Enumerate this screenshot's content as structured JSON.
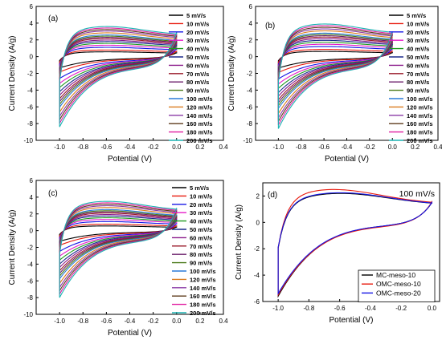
{
  "chart_data": [
    {
      "panel": "(a)",
      "type": "line",
      "xlabel": "Potential (V)",
      "ylabel": "Current Density (A/g)",
      "xlim": [
        -1.2,
        0.4
      ],
      "ylim": [
        -10,
        6
      ],
      "xticks": [
        "-1.0",
        "-0.8",
        "-0.6",
        "-0.4",
        "-0.2",
        "0.0",
        "0.2",
        "0.4"
      ],
      "yticks": [
        "-10",
        "-8",
        "-6",
        "-4",
        "-2",
        "0",
        "2",
        "4",
        "6"
      ],
      "grid": false,
      "legend_position": "right",
      "series": [
        {
          "name": "5 mV/s",
          "color": "#000000",
          "amp": 0.16
        },
        {
          "name": "10 mV/s",
          "color": "#e8190c",
          "amp": 0.22
        },
        {
          "name": "20 mV/s",
          "color": "#1515e6",
          "amp": 0.31
        },
        {
          "name": "30 mV/s",
          "color": "#e619c8",
          "amp": 0.38
        },
        {
          "name": "40 mV/s",
          "color": "#209a20",
          "amp": 0.44
        },
        {
          "name": "50 mV/s",
          "color": "#1a2a8c",
          "amp": 0.5
        },
        {
          "name": "60 mV/s",
          "color": "#8b1a8b",
          "amp": 0.55
        },
        {
          "name": "70 mV/s",
          "color": "#9a1a28",
          "amp": 0.6
        },
        {
          "name": "80 mV/s",
          "color": "#6b1f6b",
          "amp": 0.64
        },
        {
          "name": "90 mV/s",
          "color": "#4b7a1a",
          "amp": 0.68
        },
        {
          "name": "100 mV/s",
          "color": "#2a7ad9",
          "amp": 0.72
        },
        {
          "name": "120 mV/s",
          "color": "#d97a1a",
          "amp": 0.79
        },
        {
          "name": "140 mV/s",
          "color": "#8a3aa6",
          "amp": 0.85
        },
        {
          "name": "160 mV/s",
          "color": "#5c3a1a",
          "amp": 0.9
        },
        {
          "name": "180 mV/s",
          "color": "#e01ea0",
          "amp": 0.95
        },
        {
          "name": "200 mV/s",
          "color": "#1ab2b2",
          "amp": 1.0
        }
      ],
      "shape": {
        "x_start": -1.0,
        "x_end": 0.0,
        "peak_anodic": 3.6,
        "peak_x": -0.6,
        "end_anodic": 3.1,
        "end_cathodic": 2.9,
        "min_cathodic": -8.4,
        "plateau_cathodic": -1.5
      }
    },
    {
      "panel": "(b)",
      "type": "line",
      "xlabel": "Potential (V)",
      "ylabel": "Current Density (A/g)",
      "xlim": [
        -1.2,
        0.4
      ],
      "ylim": [
        -10,
        6
      ],
      "xticks": [
        "-1.0",
        "-0.8",
        "-0.6",
        "-0.4",
        "-0.2",
        "0.0",
        "0.2",
        "0.4"
      ],
      "yticks": [
        "-10",
        "-8",
        "-6",
        "-4",
        "-2",
        "0",
        "2",
        "4",
        "6"
      ],
      "grid": false,
      "legend_position": "right",
      "series": [
        {
          "name": "5 mV/s",
          "color": "#000000",
          "amp": 0.16
        },
        {
          "name": "10 mV/s",
          "color": "#e8190c",
          "amp": 0.22
        },
        {
          "name": "20 mV/s",
          "color": "#1515e6",
          "amp": 0.31
        },
        {
          "name": "30 mV/s",
          "color": "#e619c8",
          "amp": 0.38
        },
        {
          "name": "40 mV/s",
          "color": "#209a20",
          "amp": 0.44
        },
        {
          "name": "50 mV/s",
          "color": "#1a2a8c",
          "amp": 0.5
        },
        {
          "name": "60 mV/s",
          "color": "#8b1a8b",
          "amp": 0.55
        },
        {
          "name": "70 mV/s",
          "color": "#9a1a28",
          "amp": 0.6
        },
        {
          "name": "80 mV/s",
          "color": "#6b1f6b",
          "amp": 0.64
        },
        {
          "name": "90 mV/s",
          "color": "#4b7a1a",
          "amp": 0.68
        },
        {
          "name": "100 mV/s",
          "color": "#2a7ad9",
          "amp": 0.72
        },
        {
          "name": "120 mV/s",
          "color": "#d97a1a",
          "amp": 0.79
        },
        {
          "name": "140 mV/s",
          "color": "#8a3aa6",
          "amp": 0.85
        },
        {
          "name": "160 mV/s",
          "color": "#5c3a1a",
          "amp": 0.9
        },
        {
          "name": "180 mV/s",
          "color": "#e01ea0",
          "amp": 0.95
        },
        {
          "name": "200 mV/s",
          "color": "#1ab2b2",
          "amp": 1.0
        }
      ],
      "shape": {
        "x_start": -1.0,
        "x_end": 0.0,
        "peak_anodic": 3.9,
        "peak_x": -0.6,
        "end_anodic": 3.3,
        "end_cathodic": 3.0,
        "min_cathodic": -8.6,
        "plateau_cathodic": -1.6
      }
    },
    {
      "panel": "(c)",
      "type": "line",
      "xlabel": "Potential (V)",
      "ylabel": "Current Density (A/g)",
      "xlim": [
        -1.2,
        0.4
      ],
      "ylim": [
        -10,
        6
      ],
      "xticks": [
        "-1.0",
        "-0.8",
        "-0.6",
        "-0.4",
        "-0.2",
        "0.0",
        "0.2",
        "0.4"
      ],
      "yticks": [
        "-10",
        "-8",
        "-6",
        "-4",
        "-2",
        "0",
        "2",
        "4",
        "6"
      ],
      "grid": false,
      "legend_position": "right",
      "series": [
        {
          "name": "5 mV/s",
          "color": "#000000",
          "amp": 0.16
        },
        {
          "name": "10 mV/s",
          "color": "#e8190c",
          "amp": 0.22
        },
        {
          "name": "20 mV/s",
          "color": "#1515e6",
          "amp": 0.31
        },
        {
          "name": "30 mV/s",
          "color": "#e619c8",
          "amp": 0.38
        },
        {
          "name": "40 mV/s",
          "color": "#209a20",
          "amp": 0.44
        },
        {
          "name": "50 mV/s",
          "color": "#1a2a8c",
          "amp": 0.5
        },
        {
          "name": "60 mV/s",
          "color": "#8b1a8b",
          "amp": 0.55
        },
        {
          "name": "70 mV/s",
          "color": "#9a1a28",
          "amp": 0.6
        },
        {
          "name": "80 mV/s",
          "color": "#6b1f6b",
          "amp": 0.64
        },
        {
          "name": "90 mV/s",
          "color": "#4b7a1a",
          "amp": 0.68
        },
        {
          "name": "100 mV/s",
          "color": "#2a7ad9",
          "amp": 0.72
        },
        {
          "name": "120 mV/s",
          "color": "#d97a1a",
          "amp": 0.79
        },
        {
          "name": "140 mV/s",
          "color": "#8a3aa6",
          "amp": 0.85
        },
        {
          "name": "160 mV/s",
          "color": "#5c3a1a",
          "amp": 0.9
        },
        {
          "name": "180 mV/s",
          "color": "#e01ea0",
          "amp": 0.95
        },
        {
          "name": "200 mV/s",
          "color": "#1ab2b2",
          "amp": 1.0
        }
      ],
      "shape": {
        "x_start": -1.0,
        "x_end": 0.0,
        "peak_anodic": 3.5,
        "peak_x": -0.6,
        "end_anodic": 2.9,
        "end_cathodic": 2.7,
        "min_cathodic": -8.0,
        "plateau_cathodic": -1.4
      }
    },
    {
      "panel": "(d)",
      "type": "line",
      "annotation": "100 mV/s",
      "xlabel": "Potential (V)",
      "ylabel": "Current Density (A/g)",
      "xlim": [
        -1.1,
        0.05
      ],
      "ylim": [
        -6,
        3
      ],
      "xticks": [
        "-1.0",
        "-0.8",
        "-0.6",
        "-0.4",
        "-0.2",
        "0.0"
      ],
      "yticks": [
        "-6",
        "-4",
        "-2",
        "0",
        "2"
      ],
      "grid": false,
      "legend_position": "bottom-right",
      "series": [
        {
          "name": "MC-meso-10",
          "color": "#000000",
          "shape": {
            "x_start": -1.0,
            "x_end": 0.0,
            "peak_anodic": 2.2,
            "peak_x": -0.6,
            "end_anodic": 1.6,
            "end_cathodic": 1.5,
            "min_cathodic": -5.6,
            "plateau_cathodic": -0.3
          }
        },
        {
          "name": "OMC-meso-10",
          "color": "#e8190c",
          "shape": {
            "x_start": -1.0,
            "x_end": 0.0,
            "peak_anodic": 2.5,
            "peak_x": -0.65,
            "end_anodic": 1.7,
            "end_cathodic": 1.55,
            "min_cathodic": -5.5,
            "plateau_cathodic": -0.35
          }
        },
        {
          "name": "OMC-meso-20",
          "color": "#1515e6",
          "shape": {
            "x_start": -1.0,
            "x_end": 0.0,
            "peak_anodic": 2.25,
            "peak_x": -0.6,
            "end_anodic": 1.6,
            "end_cathodic": 1.5,
            "min_cathodic": -5.4,
            "plateau_cathodic": -0.3
          }
        }
      ]
    }
  ]
}
